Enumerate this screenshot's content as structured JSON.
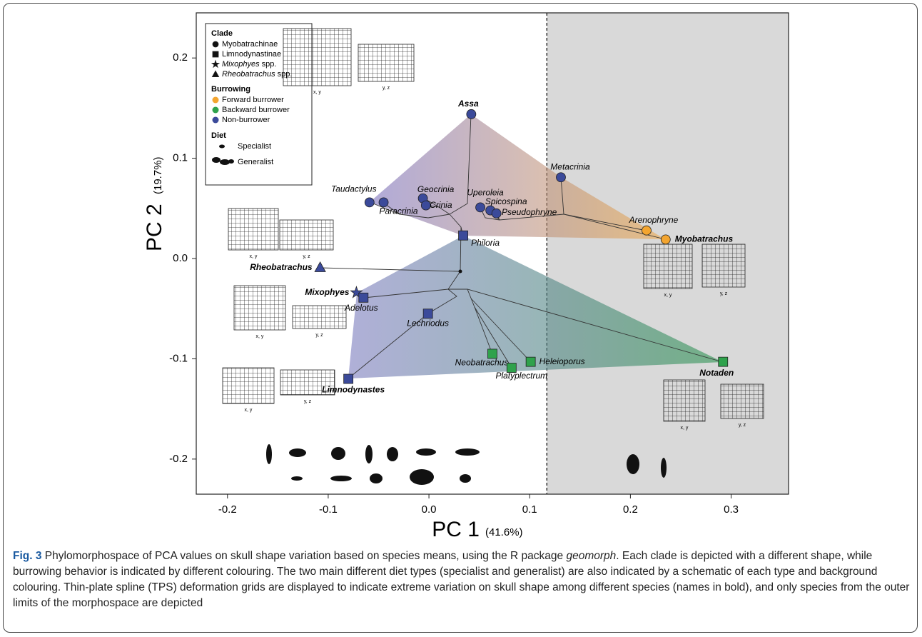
{
  "chart_data": {
    "type": "scatter",
    "x_label": "PC 1",
    "x_label_note": "(41.6%)",
    "y_label": "PC 2",
    "y_label_note": "(19.7%)",
    "xlim": [
      -0.231,
      0.357
    ],
    "ylim": [
      -0.235,
      0.245
    ],
    "xticks": [
      -0.2,
      -0.1,
      {
        "value": 0,
        "label": "0.0"
      },
      0.1,
      0.2,
      0.3
    ],
    "yticks": [
      -0.2,
      -0.1,
      {
        "value": 0,
        "label": "0.0"
      },
      0.1,
      0.2
    ],
    "shade_from_x": 0.117,
    "series": [
      {
        "name": "Non-burrower",
        "color": "#3b4a9a",
        "labels": [
          "Assa",
          "Metacrinia",
          "Taudactylus",
          "Paracrinia",
          "Geocrinia",
          "Crinia",
          "Uperoleia",
          "Spicospina",
          "Pseudophryne",
          "Philoria",
          "Rheobatrachus",
          "Mixophyes",
          "Adelotus",
          "Lechriodus",
          "Limnodynastes"
        ],
        "x": [
          0.042,
          0.131,
          -0.059,
          -0.045,
          -0.006,
          -0.003,
          0.051,
          0.061,
          0.067,
          0.034,
          -0.108,
          -0.072,
          -0.065,
          -0.001,
          -0.08
        ],
        "values": [
          0.144,
          0.081,
          0.056,
          0.056,
          0.06,
          0.053,
          0.051,
          0.048,
          0.045,
          0.023,
          -0.009,
          -0.034,
          -0.039,
          -0.055,
          -0.12
        ],
        "markers": [
          "circle",
          "circle",
          "circle",
          "circle",
          "circle",
          "circle",
          "circle",
          "circle",
          "circle",
          "square",
          "triangle",
          "star",
          "square",
          "square",
          "square"
        ],
        "bold": [
          true,
          false,
          false,
          false,
          false,
          false,
          false,
          false,
          false,
          false,
          true,
          true,
          false,
          false,
          true
        ]
      },
      {
        "name": "Forward burrower",
        "color": "#f3a530",
        "labels": [
          "Arenophryne",
          "Myobatrachus"
        ],
        "x": [
          0.216,
          0.235
        ],
        "values": [
          0.028,
          0.019
        ],
        "markers": [
          "circle",
          "circle"
        ],
        "bold": [
          false,
          true
        ]
      },
      {
        "name": "Backward burrower",
        "color": "#2fa24c",
        "labels": [
          "Neobatrachus",
          "Platyplectrum",
          "Heleioporus",
          "Notaden"
        ],
        "x": [
          0.063,
          0.082,
          0.101,
          0.292
        ],
        "values": [
          -0.095,
          -0.109,
          -0.103,
          -0.103
        ],
        "markers": [
          "square",
          "square",
          "square",
          "square"
        ],
        "bold": [
          false,
          false,
          false,
          true
        ]
      }
    ],
    "legend": {
      "clade_title": "Clade",
      "clade": [
        {
          "name": "Myobatrachinae",
          "marker": "circle"
        },
        {
          "name": "Limnodynastinae",
          "marker": "square"
        },
        {
          "name": "Mixophyes",
          "suffix": "spp.",
          "marker": "star"
        },
        {
          "name": "Rheobatrachus",
          "suffix": "spp.",
          "marker": "triangle"
        }
      ],
      "burrowing_title": "Burrowing",
      "diet_title": "Diet",
      "diet": [
        "Specialist",
        "Generalist"
      ]
    },
    "grid_labels": [
      "x, y",
      "y, z"
    ]
  },
  "caption": {
    "label": "Fig. 3",
    "parts": [
      "Phylomorphospace of PCA values on skull shape variation based on species means, using the R package ",
      "geomorph",
      ". Each clade is depicted with a different shape, while burrowing behavior is indicated by different colouring. The two main different diet types (specialist and generalist) are also indicated by a schematic of each type and background colouring. Thin-plate spline (TPS) deformation grids are displayed to indicate extreme variation on skull shape among different species (names in bold), and only species from the outer limits of the morphospace are depicted"
    ]
  }
}
